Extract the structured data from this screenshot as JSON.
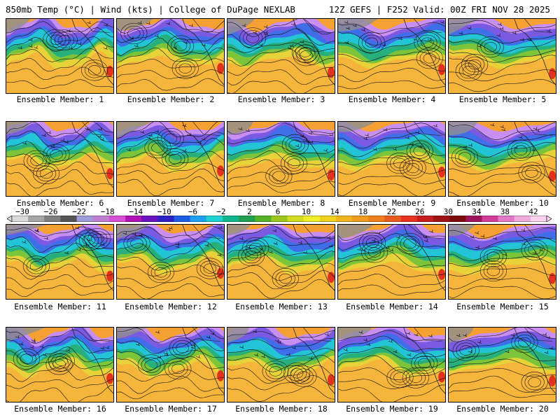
{
  "header": {
    "left": "850mb Temp (°C) | Wind (kts) | College of DuPage NEXLAB",
    "right": "12Z GEFS | F252 Valid: 00Z FRI NOV 28 2025"
  },
  "colorbar": {
    "labels": [
      "−30",
      "−26",
      "−22",
      "−18",
      "−14",
      "−10",
      "−6",
      "−2",
      "2",
      "6",
      "10",
      "14",
      "18",
      "22",
      "26",
      "30",
      "34",
      "38",
      "42"
    ],
    "colors": [
      "#d9d9d9",
      "#a6a6a6",
      "#7f7f7f",
      "#555555",
      "#9c9cd9",
      "#c07fd0",
      "#d64fd6",
      "#b012b8",
      "#6a12c0",
      "#2f20c8",
      "#1e5ee6",
      "#1ea0f0",
      "#1ed2d2",
      "#12b48c",
      "#1ea050",
      "#54b428",
      "#9cc81e",
      "#d2dc1e",
      "#f0f028",
      "#f0d21e",
      "#f0b41e",
      "#f09a1e",
      "#f07d1e",
      "#e85a1e",
      "#e6321e",
      "#c81e1e",
      "#a01414",
      "#7d0a0a",
      "#a0145a",
      "#d23c96",
      "#e678c8",
      "#f0aadc",
      "#ffd2f0"
    ]
  },
  "map": {
    "ocean_colors": [
      "#c98ef2",
      "#7a5ae0",
      "#3f6ee8",
      "#22c4d6",
      "#27b07c",
      "#7cc43a",
      "#e8d23a",
      "#f5b43a",
      "#f5a032"
    ]
  },
  "panels": [
    {
      "label": "Ensemble Member: 1"
    },
    {
      "label": "Ensemble Member: 2"
    },
    {
      "label": "Ensemble Member: 3"
    },
    {
      "label": "Ensemble Member: 4"
    },
    {
      "label": "Ensemble Member: 5"
    },
    {
      "label": "Ensemble Member: 6"
    },
    {
      "label": "Ensemble Member: 7"
    },
    {
      "label": "Ensemble Member: 8"
    },
    {
      "label": "Ensemble Member: 9"
    },
    {
      "label": "Ensemble Member: 10"
    },
    {
      "label": "Ensemble Member: 11"
    },
    {
      "label": "Ensemble Member: 12"
    },
    {
      "label": "Ensemble Member: 13"
    },
    {
      "label": "Ensemble Member: 14"
    },
    {
      "label": "Ensemble Member: 15"
    },
    {
      "label": "Ensemble Member: 16"
    },
    {
      "label": "Ensemble Member: 17"
    },
    {
      "label": "Ensemble Member: 18"
    },
    {
      "label": "Ensemble Member: 19"
    },
    {
      "label": "Ensemble Member: 20"
    }
  ]
}
